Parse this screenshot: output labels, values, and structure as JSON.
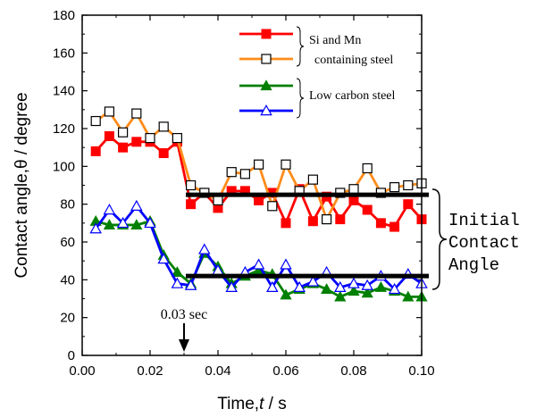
{
  "chart_data": {
    "type": "line",
    "xlabel_prefix": "Time,",
    "xlabel_var": "t",
    "xlabel_suffix": " /  s",
    "ylabel": "Contact angle,θ / degree",
    "xlim": [
      0.0,
      0.1
    ],
    "ylim": [
      0,
      180
    ],
    "x_ticks": [
      "0.00",
      "0.02",
      "0.04",
      "0.06",
      "0.08",
      "0.10"
    ],
    "y_ticks": [
      "0",
      "20",
      "40",
      "60",
      "80",
      "100",
      "120",
      "140",
      "160",
      "180"
    ],
    "x": [
      0.004,
      0.008,
      0.012,
      0.016,
      0.02,
      0.024,
      0.028,
      0.032,
      0.036,
      0.04,
      0.044,
      0.048,
      0.052,
      0.056,
      0.06,
      0.064,
      0.068,
      0.072,
      0.076,
      0.08,
      0.084,
      0.088,
      0.092,
      0.096,
      0.1
    ],
    "series": [
      {
        "marker": "filled-square",
        "color": "#ff0000",
        "line_color": "#ff0000",
        "values": [
          108,
          116,
          110,
          113,
          113,
          107,
          113,
          80,
          86,
          78,
          87,
          87,
          82,
          86,
          70,
          88,
          71,
          84,
          72,
          82,
          77,
          70,
          68,
          80,
          72
        ]
      },
      {
        "marker": "open-square",
        "color": "#000000",
        "line_color": "#ff8c1a",
        "values": [
          124,
          129,
          118,
          128,
          115,
          121,
          115,
          90,
          86,
          82,
          97,
          96,
          101,
          79,
          101,
          87,
          93,
          72,
          86,
          88,
          99,
          86,
          89,
          90,
          91
        ]
      },
      {
        "marker": "filled-triangle",
        "color": "#008000",
        "line_color": "#008000",
        "values": [
          71,
          69,
          69,
          69,
          71,
          53,
          44,
          38,
          54,
          47,
          38,
          42,
          45,
          43,
          32,
          35,
          38,
          35,
          31,
          34,
          33,
          36,
          34,
          31,
          31
        ]
      },
      {
        "marker": "open-triangle",
        "color": "#0000ff",
        "line_color": "#0000ff",
        "values": [
          67,
          77,
          70,
          79,
          70,
          51,
          38,
          37,
          56,
          45,
          36,
          44,
          48,
          36,
          48,
          36,
          39,
          44,
          36,
          38,
          37,
          42,
          35,
          43,
          38
        ]
      }
    ],
    "legend": [
      {
        "label_line1": "Si and Mn",
        "label_line2": "containing steel",
        "series": [
          0,
          1
        ]
      },
      {
        "label_line1": "Low carbon steel",
        "series": [
          2,
          3
        ]
      }
    ],
    "reference_lines": [
      {
        "x_start": 0.03,
        "x_end": 0.1,
        "y": 85
      },
      {
        "x_start": 0.03,
        "x_end": 0.1,
        "y": 42
      }
    ],
    "annotations": {
      "arrow_label": "0.03 sec",
      "arrow_x": 0.03,
      "brace_label": [
        "Initial",
        "Contact",
        "Angle"
      ]
    }
  }
}
